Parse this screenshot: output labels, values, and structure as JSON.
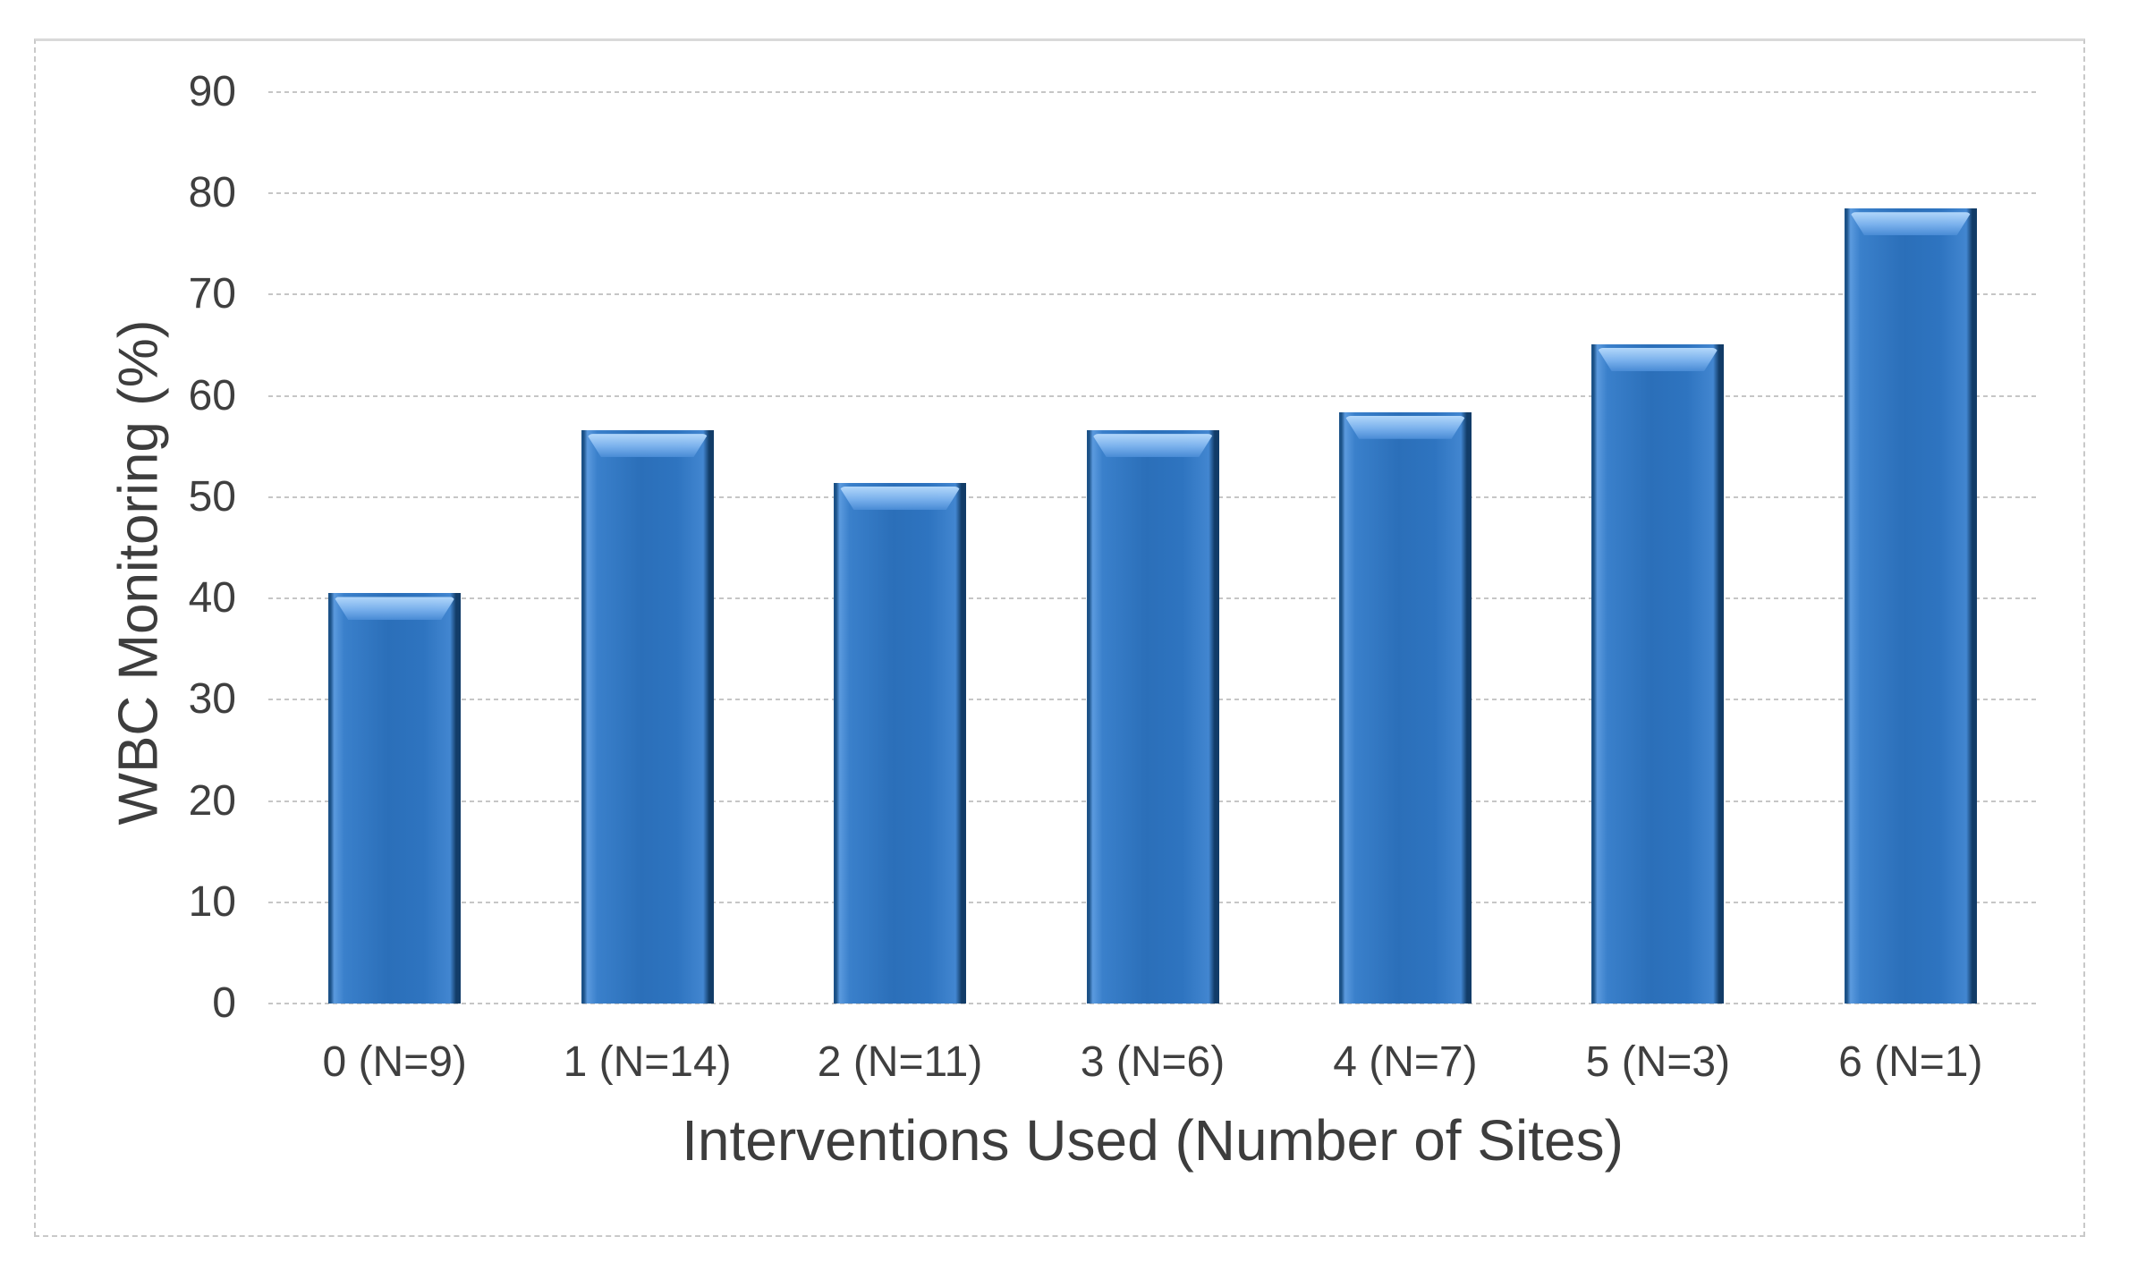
{
  "chart_data": {
    "type": "bar",
    "title": "",
    "categories": [
      "0 (N=9)",
      "1 (N=14)",
      "2 (N=11)",
      "3 (N=6)",
      "4 (N=7)",
      "5 (N=3)",
      "6 (N=1)"
    ],
    "values": [
      40.5,
      56.6,
      51.4,
      56.6,
      58.4,
      65.1,
      78.5
    ],
    "xlabel": "Interventions Used (Number of Sites)",
    "ylabel": "WBC Monitoring (%)",
    "ylim": [
      0,
      90
    ],
    "yticks": [
      0,
      10,
      20,
      30,
      40,
      50,
      60,
      70,
      80,
      90
    ],
    "grid": "horizontal-dotted",
    "legend_position": "none",
    "colors": {
      "bar_fill": "#2e74c0",
      "bar_edge_dark": "#123c68",
      "bar_gloss_highlight": "#7db3ee",
      "gridline": "#c6c6c6",
      "axis_text": "#3f3f3f",
      "frame_border": "#c9c9c9",
      "background": "#ffffff"
    }
  }
}
